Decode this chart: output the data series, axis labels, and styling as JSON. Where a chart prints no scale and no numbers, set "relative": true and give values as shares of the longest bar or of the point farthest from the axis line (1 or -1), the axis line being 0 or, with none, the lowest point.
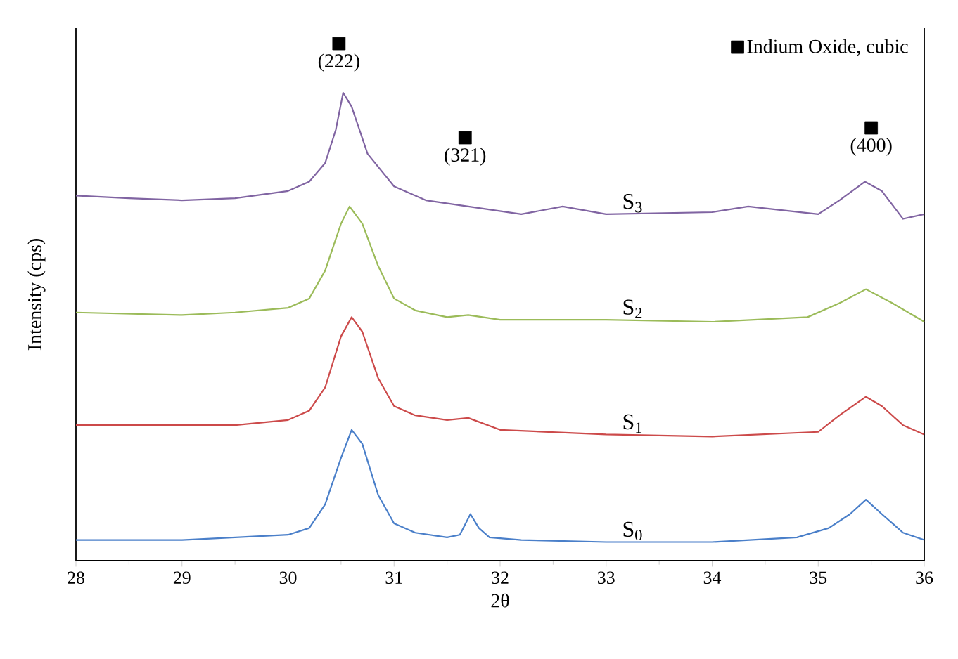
{
  "chart_data": {
    "type": "line",
    "relative": true,
    "xlabel": "2θ",
    "ylabel": "Intensity (cps)",
    "xlim": [
      28,
      36
    ],
    "xticks": [
      28,
      29,
      30,
      31,
      32,
      33,
      34,
      35,
      36
    ],
    "legend": "top right",
    "line_style": "solid",
    "series": [
      {
        "name": "S$_{0}$",
        "color": "#4a7fc9",
        "x": [
          28,
          29,
          29.5,
          30,
          30.2,
          30.35,
          30.5,
          30.6,
          30.7,
          30.85,
          31.0,
          31.2,
          31.5,
          31.62,
          31.72,
          31.8,
          31.9,
          32.2,
          33,
          34,
          34.8,
          35.1,
          35.3,
          35.45,
          35.6,
          35.8,
          36
        ],
        "values": [
          0.04,
          0.04,
          0.045,
          0.05,
          0.063,
          0.109,
          0.199,
          0.253,
          0.226,
          0.127,
          0.072,
          0.054,
          0.045,
          0.05,
          0.09,
          0.063,
          0.045,
          0.04,
          0.036,
          0.036,
          0.045,
          0.063,
          0.09,
          0.118,
          0.09,
          0.054,
          0.04
        ]
      },
      {
        "name": "S$_{1}$",
        "color": "#cc4a4a",
        "x": [
          28,
          29,
          29.5,
          30,
          30.2,
          30.35,
          30.5,
          30.6,
          30.7,
          30.85,
          31.0,
          31.2,
          31.5,
          31.7,
          32,
          33,
          34,
          35,
          35.2,
          35.45,
          35.6,
          35.8,
          36
        ],
        "values": [
          0.262,
          0.262,
          0.262,
          0.272,
          0.29,
          0.335,
          0.434,
          0.471,
          0.443,
          0.353,
          0.299,
          0.281,
          0.272,
          0.276,
          0.253,
          0.244,
          0.24,
          0.249,
          0.281,
          0.317,
          0.299,
          0.262,
          0.244
        ]
      },
      {
        "name": "S$_{2}$",
        "color": "#9bbb59",
        "x": [
          28,
          29,
          29.5,
          30,
          30.2,
          30.35,
          30.5,
          30.58,
          30.7,
          30.85,
          31.0,
          31.2,
          31.5,
          31.7,
          32,
          33,
          34,
          34.9,
          35.2,
          35.45,
          35.7,
          36
        ],
        "values": [
          0.48,
          0.475,
          0.48,
          0.489,
          0.507,
          0.561,
          0.652,
          0.685,
          0.652,
          0.57,
          0.507,
          0.484,
          0.471,
          0.475,
          0.466,
          0.466,
          0.462,
          0.471,
          0.498,
          0.525,
          0.498,
          0.462
        ]
      },
      {
        "name": "S$_{3}$",
        "color": "#8064a2",
        "x": [
          28,
          28.5,
          29,
          29.5,
          30,
          30.2,
          30.35,
          30.45,
          30.52,
          30.6,
          30.75,
          31.0,
          31.3,
          31.7,
          32.2,
          32.59,
          33,
          34,
          34.34,
          35,
          35.2,
          35.44,
          35.6,
          35.8,
          36
        ],
        "values": [
          0.706,
          0.701,
          0.697,
          0.701,
          0.715,
          0.733,
          0.769,
          0.833,
          0.905,
          0.878,
          0.787,
          0.724,
          0.697,
          0.685,
          0.67,
          0.685,
          0.67,
          0.674,
          0.685,
          0.67,
          0.697,
          0.733,
          0.715,
          0.661,
          0.67
        ]
      },
      {
        "name": "Indium Oxide, cubic",
        "type": "scatter",
        "marker": "square",
        "color": "#000000",
        "x": [
          30.48,
          31.67,
          35.5
        ],
        "values": [
          1.0,
          0.818,
          0.837
        ]
      }
    ],
    "annotations": [
      {
        "text": "(222)",
        "x": 30.48,
        "y": 1.0
      },
      {
        "text": "(321)",
        "x": 31.67,
        "y": 0.818
      },
      {
        "text": "(400)",
        "x": 35.5,
        "y": 0.837
      }
    ]
  }
}
